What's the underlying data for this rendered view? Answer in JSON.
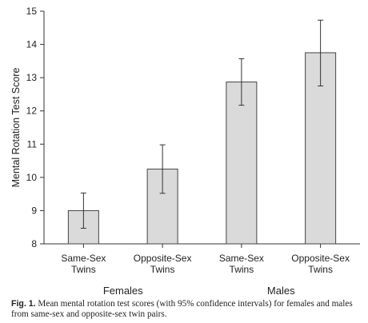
{
  "chart_data": {
    "type": "bar",
    "categories": [
      [
        "Same-Sex",
        "Twins"
      ],
      [
        "Opposite-Sex",
        "Twins"
      ],
      [
        "Same-Sex",
        "Twins"
      ],
      [
        "Opposite-Sex",
        "Twins"
      ]
    ],
    "groups": [
      {
        "label": "Females",
        "indices": [
          0,
          1
        ]
      },
      {
        "label": "Males",
        "indices": [
          2,
          3
        ]
      }
    ],
    "values": [
      9.0,
      10.25,
      12.87,
      13.75
    ],
    "error_low": [
      8.47,
      9.52,
      12.17,
      12.75
    ],
    "error_high": [
      9.53,
      10.98,
      13.57,
      14.73
    ],
    "ylabel": "Mental Rotation Test Score",
    "xlabel": "",
    "ylim": [
      8,
      15
    ],
    "yticks": [
      8,
      9,
      10,
      11,
      12,
      13,
      14,
      15
    ],
    "grid": false,
    "bar_color": "#dadada",
    "bar_edge_color": "#444444",
    "axis_color": "#333333"
  },
  "caption": {
    "label": "Fig. 1.",
    "text": " Mean mental rotation test scores (with 95% confidence intervals) for females and males from same-sex and opposite-sex twin pairs."
  }
}
